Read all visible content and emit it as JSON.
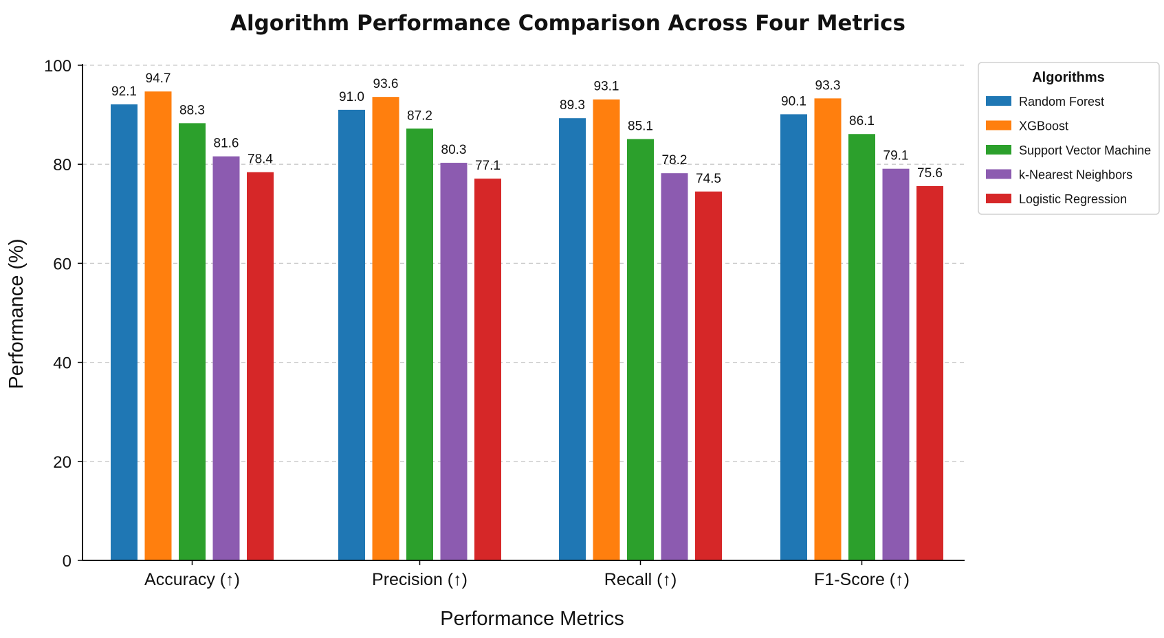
{
  "chart_data": {
    "type": "bar",
    "title": "Algorithm Performance Comparison Across Four Metrics",
    "xlabel": "Performance Metrics",
    "ylabel": "Performance (%)",
    "ylim": [
      0,
      100
    ],
    "yticks": [
      0,
      20,
      40,
      60,
      80,
      100
    ],
    "grid": "horizontal dashed",
    "legend_title": "Algorithms",
    "legend_position": "right-top",
    "categories": [
      "Accuracy (↑)",
      "Precision (↑)",
      "Recall (↑)",
      "F1-Score (↑)"
    ],
    "series": [
      {
        "name": "Random Forest",
        "color": "#1f77b4",
        "values": [
          92.1,
          91.0,
          89.3,
          90.1
        ]
      },
      {
        "name": "XGBoost",
        "color": "#ff7f0e",
        "values": [
          94.7,
          93.6,
          93.1,
          93.3
        ]
      },
      {
        "name": "Support Vector Machine",
        "color": "#2ca02c",
        "values": [
          88.3,
          87.2,
          85.1,
          86.1
        ]
      },
      {
        "name": "k-Nearest Neighbors",
        "color": "#8c5bb0",
        "values": [
          81.6,
          80.3,
          78.2,
          79.1
        ]
      },
      {
        "name": "Logistic Regression",
        "color": "#d62728",
        "values": [
          78.4,
          77.1,
          74.5,
          75.6
        ]
      }
    ]
  }
}
